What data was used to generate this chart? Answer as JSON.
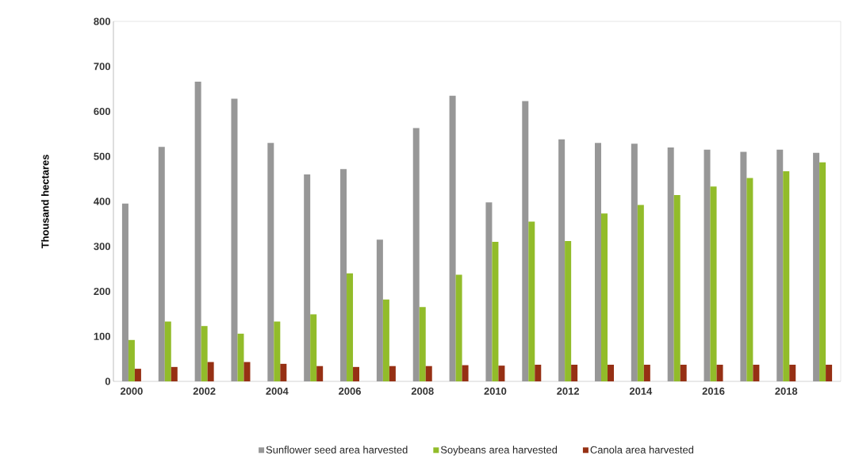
{
  "chart_data": {
    "type": "bar",
    "ylabel": "Thousand hectares",
    "categories": [
      "2000",
      null,
      "2002",
      null,
      "2004",
      null,
      "2006",
      null,
      "2008",
      null,
      "2010",
      null,
      "2012",
      null,
      "2014",
      null,
      "2016",
      null,
      "2018",
      null
    ],
    "series": [
      {
        "name": "Sunflower seed area harvested",
        "color": "#979797",
        "values": [
          395,
          521,
          666,
          628,
          530,
          460,
          472,
          315,
          563,
          635,
          398,
          623,
          538,
          530,
          528,
          520,
          515,
          510,
          515,
          508
        ]
      },
      {
        "name": "Soybeans area harvested",
        "color": "#92bc2a",
        "values": [
          92,
          133,
          123,
          106,
          133,
          149,
          240,
          182,
          165,
          237,
          310,
          355,
          312,
          373,
          392,
          414,
          433,
          452,
          467,
          487
        ]
      },
      {
        "name": "Canola area harvested",
        "color": "#963014",
        "values": [
          28,
          32,
          43,
          43,
          39,
          34,
          32,
          34,
          34,
          36,
          35,
          37,
          37,
          37,
          37,
          37,
          37,
          37,
          37,
          37
        ]
      }
    ],
    "ylim": [
      0,
      800
    ],
    "yticks": [
      0,
      100,
      200,
      300,
      400,
      500,
      600,
      700,
      800
    ],
    "grid": false,
    "legend": "bottom"
  }
}
